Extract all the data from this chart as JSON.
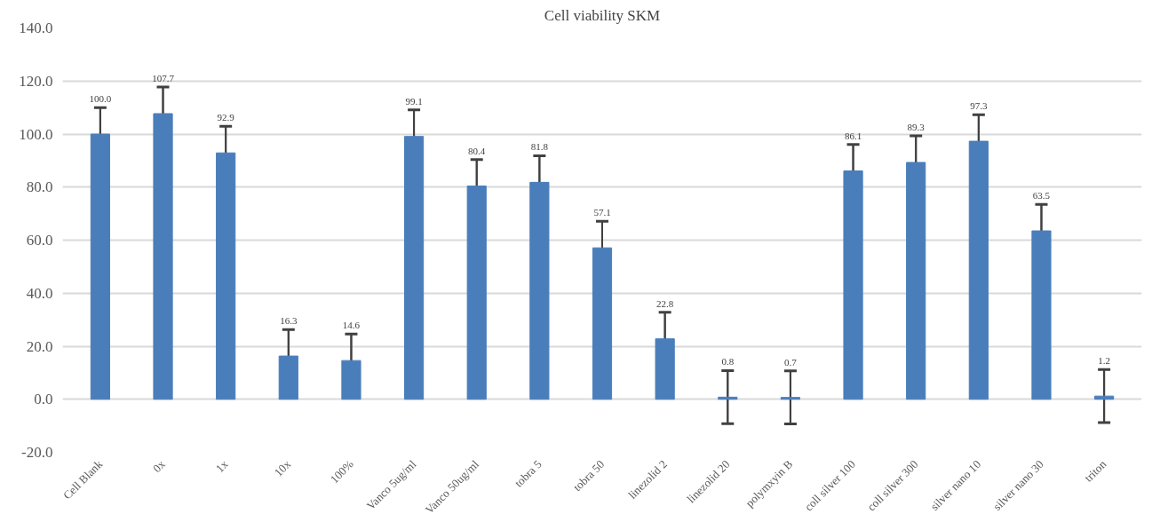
{
  "chart_data": {
    "type": "bar",
    "title": "Cell viability SKM",
    "categories": [
      "Cell Blank",
      "0x",
      "1x",
      "10x",
      "100%",
      "Vanco 5ug/ml",
      "Vanco 50ug/ml",
      "tobra 5",
      "tobra 50",
      "linezolid 2",
      "linezolid 20",
      "polymxyin B",
      "coll silver 100",
      "coll silver 300",
      "silver nano 10",
      "silver nano 30",
      "triton"
    ],
    "values": [
      100.0,
      107.7,
      92.9,
      16.3,
      14.6,
      99.1,
      80.4,
      81.8,
      57.1,
      22.8,
      0.8,
      0.7,
      86.1,
      89.3,
      97.3,
      63.5,
      1.2
    ],
    "errors": [
      10,
      10,
      10,
      10,
      10,
      10,
      10,
      10,
      10,
      10,
      10,
      10,
      10,
      10,
      10,
      10,
      10
    ],
    "color": "#4a7ebb",
    "value_labels": [
      "100.0",
      "107.7",
      "92.9",
      "16.3",
      "14.6",
      "99.1",
      "80.4",
      "81.8",
      "57.1",
      "22.8",
      "0.8",
      "0.7",
      "86.1",
      "89.3",
      "97.3",
      "63.5",
      "1.2"
    ],
    "ylim": [
      -20,
      140
    ],
    "yticks": [
      {
        "value": -20,
        "label": "-20.0"
      },
      {
        "value": 0,
        "label": "0.0"
      },
      {
        "value": 20,
        "label": "20.0"
      },
      {
        "value": 40,
        "label": "40.0"
      },
      {
        "value": 60,
        "label": "60.0"
      },
      {
        "value": 80,
        "label": "80.0"
      },
      {
        "value": 100,
        "label": "100.0"
      },
      {
        "value": 120,
        "label": "120.0"
      },
      {
        "value": 140,
        "label": "140.0"
      }
    ],
    "grid": "y"
  }
}
